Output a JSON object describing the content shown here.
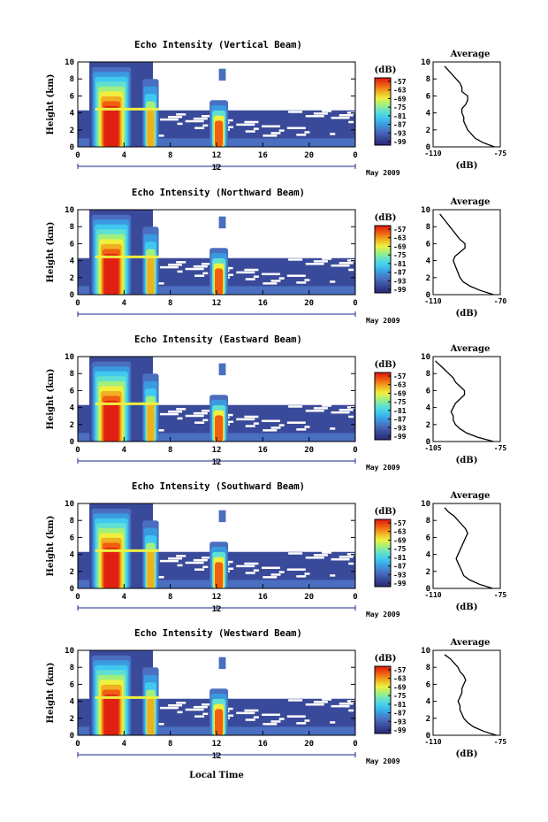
{
  "figure": {
    "date_label": "May 2009",
    "xlabel_bottom": "Local Time",
    "colorbar_unit": "(dB)",
    "colorbar_ticks": [
      "-57",
      "-63",
      "-69",
      "-75",
      "-81",
      "-87",
      "-93",
      "-99"
    ],
    "colors": [
      "#2a2c7a",
      "#3a4a9a",
      "#4a6ec0",
      "#3a9ae0",
      "#40c8f0",
      "#60e0d0",
      "#a0f080",
      "#f0f040",
      "#f0b020",
      "#f06010",
      "#e02010"
    ]
  },
  "chart_data": [
    {
      "type": "heatmap",
      "title": "Echo Intensity (Vertical Beam)",
      "ylabel": "Height (km)",
      "xlim": [
        0,
        24
      ],
      "ylim": [
        0,
        10
      ],
      "xticks": [
        "0",
        "4",
        "8",
        "12",
        "16",
        "20",
        "0"
      ],
      "yticks": [
        "0",
        "2",
        "4",
        "6",
        "8",
        "10"
      ],
      "secondary_tick": "12",
      "profile": {
        "title": "Average",
        "xlabel": "(dB)",
        "xticks": [
          "-110",
          "-75"
        ],
        "xlim": [
          -110,
          -75
        ],
        "yticks": [
          "0",
          "2",
          "4",
          "6",
          "8",
          "10"
        ],
        "height_km": [
          0,
          0.5,
          1,
          1.5,
          2,
          2.5,
          3,
          3.5,
          4,
          4.5,
          5,
          5.5,
          6,
          6.5,
          7,
          7.5,
          8,
          8.5,
          9,
          9.5
        ],
        "db": [
          -78,
          -84,
          -88,
          -90,
          -92,
          -93,
          -94,
          -94,
          -95,
          -95,
          -93,
          -92,
          -92,
          -95,
          -95,
          -96,
          -98,
          -100,
          -102,
          -104
        ]
      }
    },
    {
      "type": "heatmap",
      "title": "Echo Intensity (Northward Beam)",
      "ylabel": "Height (km)",
      "xlim": [
        0,
        24
      ],
      "ylim": [
        0,
        10
      ],
      "xticks": [
        "0",
        "4",
        "8",
        "12",
        "16",
        "20",
        "0"
      ],
      "yticks": [
        "0",
        "2",
        "4",
        "6",
        "8",
        "10"
      ],
      "secondary_tick": "",
      "profile": {
        "title": "Average",
        "xlabel": "(dB)",
        "xticks": [
          "-110",
          "-70"
        ],
        "xlim": [
          -110,
          -70
        ],
        "yticks": [
          "0",
          "2",
          "4",
          "6",
          "8",
          "10"
        ],
        "height_km": [
          0,
          0.5,
          1,
          1.5,
          2,
          2.5,
          3,
          3.5,
          4,
          4.5,
          5,
          5.5,
          6,
          6.5,
          7,
          7.5,
          8,
          8.5,
          9,
          9.5
        ],
        "db": [
          -74,
          -82,
          -88,
          -92,
          -94,
          -95,
          -96,
          -97,
          -98,
          -97,
          -94,
          -91,
          -91,
          -94,
          -96,
          -98,
          -100,
          -102,
          -104,
          -106
        ]
      }
    },
    {
      "type": "heatmap",
      "title": "Echo Intensity (Eastward Beam)",
      "ylabel": "Height (km)",
      "xlim": [
        0,
        24
      ],
      "ylim": [
        0,
        10
      ],
      "xticks": [
        "0",
        "4",
        "8",
        "12",
        "16",
        "20",
        "0"
      ],
      "yticks": [
        "0",
        "2",
        "4",
        "6",
        "8",
        "10"
      ],
      "secondary_tick": "12",
      "profile": {
        "title": "Average",
        "xlabel": "(dB)",
        "xticks": [
          "-105",
          "-75"
        ],
        "xlim": [
          -105,
          -75
        ],
        "yticks": [
          "0",
          "2",
          "4",
          "6",
          "8",
          "10"
        ],
        "height_km": [
          0,
          0.5,
          1,
          1.5,
          2,
          2.5,
          3,
          3.5,
          4,
          4.5,
          5,
          5.5,
          6,
          6.5,
          7,
          7.5,
          8,
          8.5,
          9,
          9.5
        ],
        "db": [
          -78,
          -85,
          -90,
          -93,
          -95,
          -96,
          -96,
          -97,
          -96,
          -95,
          -93,
          -91,
          -91,
          -93,
          -95,
          -96,
          -98,
          -100,
          -102,
          -104
        ]
      }
    },
    {
      "type": "heatmap",
      "title": "Echo Intensity (Southward Beam)",
      "ylabel": "Height (km)",
      "xlim": [
        0,
        24
      ],
      "ylim": [
        0,
        10
      ],
      "xticks": [
        "0",
        "4",
        "8",
        "12",
        "16",
        "20",
        "0"
      ],
      "yticks": [
        "0",
        "2",
        "4",
        "6",
        "8",
        "10"
      ],
      "secondary_tick": "12",
      "profile": {
        "title": "Average",
        "xlabel": "(dB)",
        "xticks": [
          "-110",
          "-75"
        ],
        "xlim": [
          -110,
          -75
        ],
        "yticks": [
          "0",
          "2",
          "4",
          "6",
          "8",
          "10"
        ],
        "height_km": [
          0,
          0.5,
          1,
          1.5,
          2,
          2.5,
          3,
          3.5,
          4,
          4.5,
          5,
          5.5,
          6,
          6.5,
          7,
          7.5,
          8,
          8.5,
          9,
          9.5
        ],
        "db": [
          -79,
          -86,
          -91,
          -94,
          -95,
          -96,
          -97,
          -98,
          -97,
          -96,
          -95,
          -94,
          -93,
          -92,
          -93,
          -95,
          -97,
          -99,
          -102,
          -104
        ]
      }
    },
    {
      "type": "heatmap",
      "title": "Echo Intensity (Westward Beam)",
      "ylabel": "Height (km)",
      "xlim": [
        0,
        24
      ],
      "ylim": [
        0,
        10
      ],
      "xticks": [
        "0",
        "4",
        "8",
        "12",
        "16",
        "20",
        "0"
      ],
      "yticks": [
        "0",
        "2",
        "4",
        "6",
        "8",
        "10"
      ],
      "secondary_tick": "12",
      "profile": {
        "title": "Average",
        "xlabel": "(dB)",
        "xticks": [
          "-110",
          "-75"
        ],
        "xlim": [
          -110,
          -75
        ],
        "yticks": [
          "0",
          "2",
          "4",
          "6",
          "8",
          "10"
        ],
        "height_km": [
          0,
          0.5,
          1,
          1.5,
          2,
          2.5,
          3,
          3.5,
          4,
          4.5,
          5,
          5.5,
          6,
          6.5,
          7,
          7.5,
          8,
          8.5,
          9,
          9.5
        ],
        "db": [
          -77,
          -84,
          -89,
          -92,
          -94,
          -95,
          -96,
          -96,
          -97,
          -96,
          -95,
          -95,
          -94,
          -93,
          -94,
          -96,
          -97,
          -99,
          -101,
          -104
        ]
      }
    }
  ]
}
